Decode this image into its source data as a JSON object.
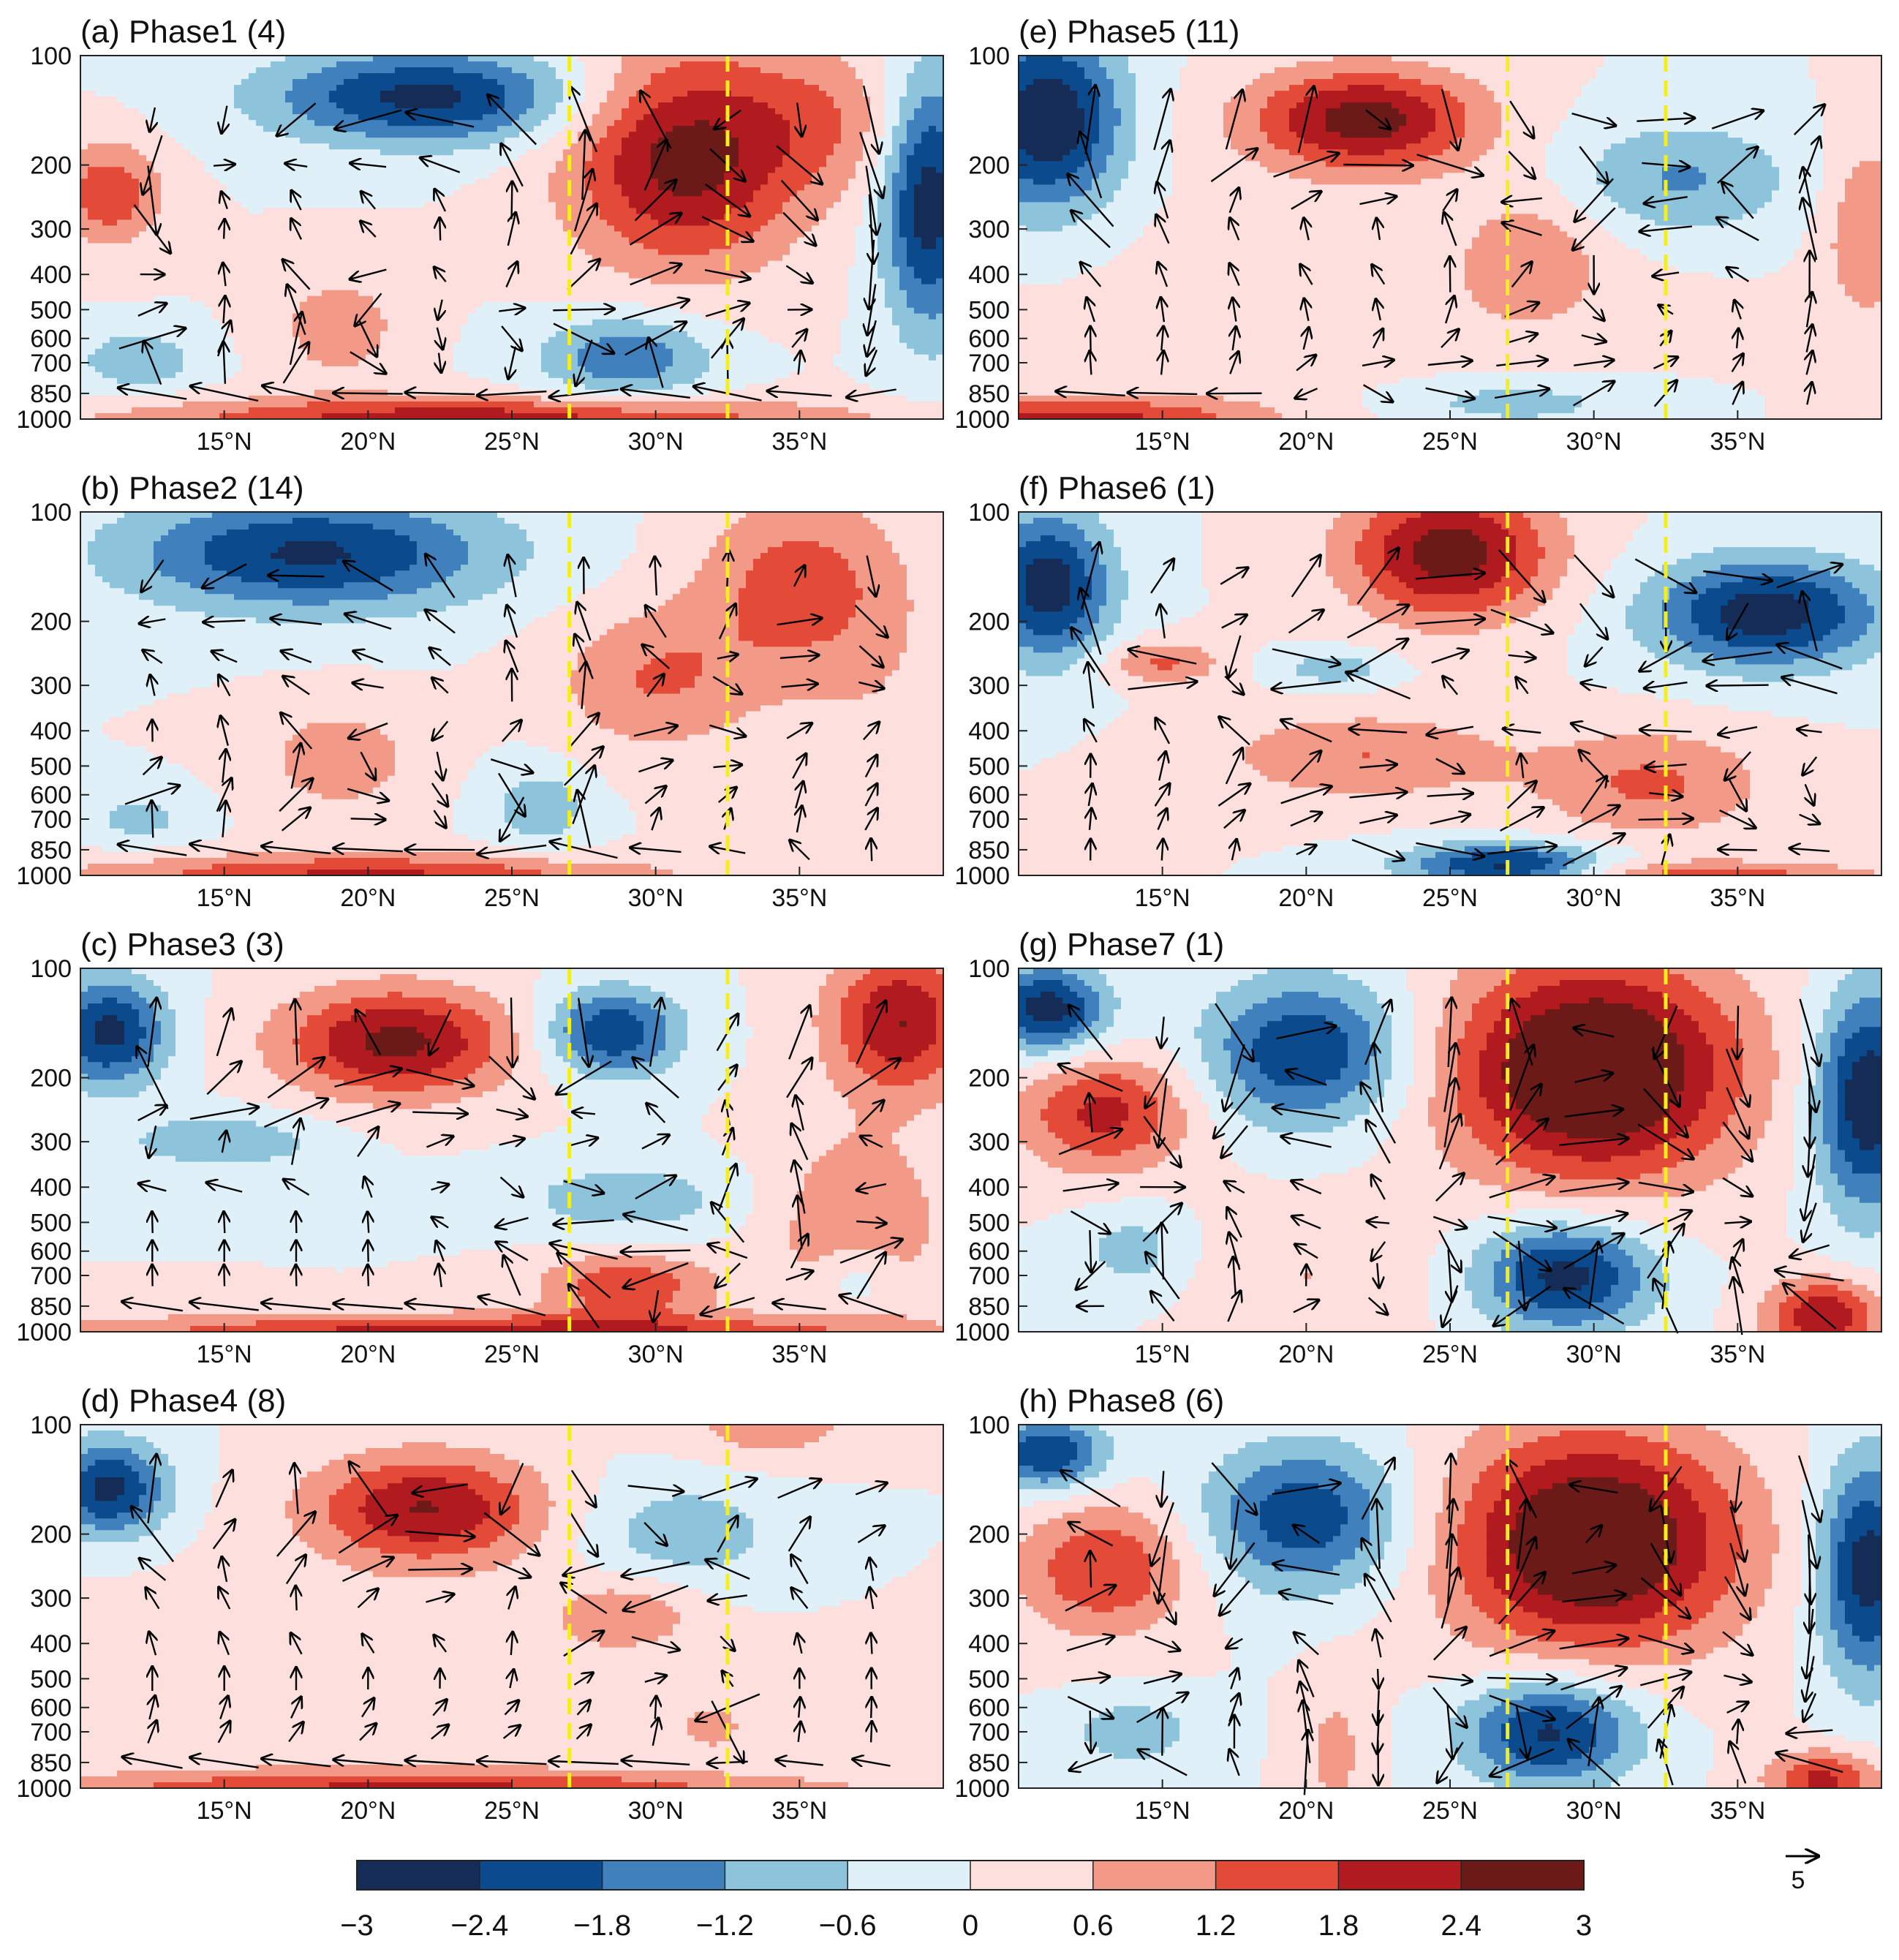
{
  "chart_data": {
    "type": "heatmap",
    "description_units": "pressure-latitude cross sections with vertical circulation vectors",
    "y_levels_hPa": [
      100,
      200,
      300,
      400,
      500,
      600,
      700,
      850,
      1000
    ],
    "y_tick_labels": [
      "100",
      "200",
      "300",
      "400",
      "500",
      "600",
      "700",
      "850",
      "1000"
    ],
    "x_range_degN": [
      10,
      40
    ],
    "x_ticks": [
      15,
      20,
      25,
      30,
      35
    ],
    "x_tick_labels": [
      "15°N",
      "20°N",
      "25°N",
      "30°N",
      "35°N"
    ],
    "reference_lines_degN": [
      27,
      32.5
    ],
    "reference_line_color": "#f5ee1a",
    "vector_key": {
      "label": "5"
    },
    "colorbar": {
      "boundaries": [
        -3,
        -2.4,
        -1.8,
        -1.2,
        -0.6,
        0,
        0.6,
        1.2,
        1.8,
        2.4,
        3
      ],
      "tick_labels": [
        "−3",
        "−2.4",
        "−1.8",
        "−1.2",
        "−0.6",
        "0",
        "0.6",
        "1.2",
        "1.8",
        "2.4",
        "3"
      ],
      "colors": [
        "#152d56",
        "#0b4a8c",
        "#3f80bd",
        "#8dc4dc",
        "#dff0f8",
        "#fde0dd",
        "#f29a87",
        "#e44a38",
        "#b11a1e",
        "#6b1a18"
      ]
    },
    "panels": [
      {
        "id": "a",
        "title": "(a) Phase1  (4)",
        "blobs": [
          {
            "lat": 22,
            "p": 130,
            "a": -2.6,
            "sx": 5.5,
            "sy": 0.13
          },
          {
            "lat": 11,
            "p": 240,
            "a": 1.7,
            "sx": 1.8,
            "sy": 0.14
          },
          {
            "lat": 31,
            "p": 190,
            "a": 2.7,
            "sx": 4,
            "sy": 0.3
          },
          {
            "lat": 36,
            "p": 150,
            "a": 0.9,
            "sx": 3,
            "sy": 0.2
          },
          {
            "lat": 39.5,
            "p": 250,
            "a": -2.8,
            "sx": 1.6,
            "sy": 0.35
          },
          {
            "lat": 29,
            "p": 680,
            "a": -1.7,
            "sx": 3,
            "sy": 0.12
          },
          {
            "lat": 12,
            "p": 690,
            "a": -1.2,
            "sx": 2,
            "sy": 0.08
          },
          {
            "lat": 19,
            "p": 560,
            "a": 1,
            "sx": 2.2,
            "sy": 0.15
          },
          {
            "lat": 24,
            "p": 1000,
            "a": 2.2,
            "sx": 12,
            "sy": 0.06
          }
        ]
      },
      {
        "id": "b",
        "title": "(b) Phase2  (14)",
        "blobs": [
          {
            "lat": 18,
            "p": 130,
            "a": -2.5,
            "sx": 6.5,
            "sy": 0.16
          },
          {
            "lat": 35,
            "p": 160,
            "a": 1.5,
            "sx": 3.5,
            "sy": 0.25
          },
          {
            "lat": 30,
            "p": 290,
            "a": 1.2,
            "sx": 3.5,
            "sy": 0.2
          },
          {
            "lat": 19,
            "p": 480,
            "a": 1,
            "sx": 2.8,
            "sy": 0.15
          },
          {
            "lat": 26,
            "p": 650,
            "a": -1,
            "sx": 1.8,
            "sy": 0.12
          },
          {
            "lat": 12,
            "p": 700,
            "a": -0.8,
            "sx": 2,
            "sy": 0.08
          },
          {
            "lat": 20,
            "p": 1000,
            "a": 1.9,
            "sx": 10,
            "sy": 0.06
          },
          {
            "lat": 38,
            "p": 400,
            "a": 0.4,
            "sx": 3,
            "sy": 0.4
          }
        ]
      },
      {
        "id": "c",
        "title": "(c) Phase3  (3)",
        "blobs": [
          {
            "lat": 21,
            "p": 160,
            "a": 2.6,
            "sx": 4,
            "sy": 0.15
          },
          {
            "lat": 38.5,
            "p": 140,
            "a": 2.4,
            "sx": 2.5,
            "sy": 0.2
          },
          {
            "lat": 28.5,
            "p": 150,
            "a": -2.4,
            "sx": 2.3,
            "sy": 0.12
          },
          {
            "lat": 11,
            "p": 150,
            "a": -2.6,
            "sx": 2,
            "sy": 0.15
          },
          {
            "lat": 15,
            "p": 300,
            "a": -1.1,
            "sx": 3.5,
            "sy": 0.08
          },
          {
            "lat": 29,
            "p": 430,
            "a": -1,
            "sx": 4,
            "sy": 0.1
          },
          {
            "lat": 29,
            "p": 750,
            "a": 1.7,
            "sx": 3,
            "sy": 0.09
          },
          {
            "lat": 37,
            "p": 500,
            "a": 1.2,
            "sx": 3,
            "sy": 0.25
          },
          {
            "lat": 24,
            "p": 1000,
            "a": 2.1,
            "sx": 14,
            "sy": 0.05
          },
          {
            "lat": 37,
            "p": 700,
            "a": -0.9,
            "sx": 1.3,
            "sy": 0.1
          }
        ]
      },
      {
        "id": "d",
        "title": "(d) Phase4  (8)",
        "blobs": [
          {
            "lat": 22,
            "p": 170,
            "a": 2.4,
            "sx": 4,
            "sy": 0.15
          },
          {
            "lat": 11,
            "p": 150,
            "a": -2.6,
            "sx": 2,
            "sy": 0.13
          },
          {
            "lat": 31,
            "p": 200,
            "a": -1,
            "sx": 3.5,
            "sy": 0.15
          },
          {
            "lat": 29,
            "p": 330,
            "a": 1,
            "sx": 2.5,
            "sy": 0.1
          },
          {
            "lat": 34,
            "p": 100,
            "a": 1,
            "sx": 3,
            "sy": 0.1
          },
          {
            "lat": 22,
            "p": 1000,
            "a": 1.8,
            "sx": 14,
            "sy": 0.05
          },
          {
            "lat": 20,
            "p": 500,
            "a": 0.4,
            "sx": 10,
            "sy": 0.3
          },
          {
            "lat": 32,
            "p": 680,
            "a": 1,
            "sx": 1,
            "sy": 0.06
          }
        ]
      },
      {
        "id": "e",
        "title": "(e) Phase5  (11)",
        "blobs": [
          {
            "lat": 22,
            "p": 150,
            "a": 2.7,
            "sx": 4,
            "sy": 0.14
          },
          {
            "lat": 11,
            "p": 150,
            "a": -3,
            "sx": 2.6,
            "sy": 0.25
          },
          {
            "lat": 33,
            "p": 220,
            "a": -1.3,
            "sx": 4,
            "sy": 0.16
          },
          {
            "lat": 28,
            "p": 350,
            "a": 0.9,
            "sx": 2.5,
            "sy": 0.18
          },
          {
            "lat": 39.5,
            "p": 300,
            "a": 1.2,
            "sx": 1.5,
            "sy": 0.25
          },
          {
            "lat": 27,
            "p": 900,
            "a": -1,
            "sx": 5,
            "sy": 0.08
          },
          {
            "lat": 12,
            "p": 1000,
            "a": 2,
            "sx": 6,
            "sy": 0.06
          },
          {
            "lat": 22,
            "p": 550,
            "a": 0.4,
            "sx": 10,
            "sy": 0.35
          }
        ]
      },
      {
        "id": "f",
        "title": "(f) Phase6  (1)",
        "blobs": [
          {
            "lat": 25,
            "p": 130,
            "a": 2.8,
            "sx": 3.5,
            "sy": 0.18
          },
          {
            "lat": 11,
            "p": 160,
            "a": -2.8,
            "sx": 2.2,
            "sy": 0.2
          },
          {
            "lat": 36,
            "p": 190,
            "a": -2.8,
            "sx": 4,
            "sy": 0.15
          },
          {
            "lat": 22,
            "p": 470,
            "a": 1.2,
            "sx": 5,
            "sy": 0.12
          },
          {
            "lat": 32,
            "p": 560,
            "a": 1.3,
            "sx": 4,
            "sy": 0.15
          },
          {
            "lat": 27,
            "p": 940,
            "a": -2.7,
            "sx": 3.5,
            "sy": 0.06
          },
          {
            "lat": 15,
            "p": 260,
            "a": 1.3,
            "sx": 2,
            "sy": 0.06
          },
          {
            "lat": 21,
            "p": 270,
            "a": -1,
            "sx": 2,
            "sy": 0.05
          },
          {
            "lat": 34,
            "p": 1000,
            "a": 1.5,
            "sx": 6,
            "sy": 0.04
          }
        ]
      },
      {
        "id": "g",
        "title": "(g) Phase7  (1)",
        "blobs": [
          {
            "lat": 30,
            "p": 190,
            "a": 3.6,
            "sx": 5,
            "sy": 0.3
          },
          {
            "lat": 20,
            "p": 170,
            "a": -2.4,
            "sx": 3.5,
            "sy": 0.2
          },
          {
            "lat": 11,
            "p": 130,
            "a": -2.8,
            "sx": 2,
            "sy": 0.12
          },
          {
            "lat": 13,
            "p": 250,
            "a": 2,
            "sx": 3,
            "sy": 0.16
          },
          {
            "lat": 39.5,
            "p": 230,
            "a": -3,
            "sx": 1.8,
            "sy": 0.3
          },
          {
            "lat": 29,
            "p": 700,
            "a": -2.7,
            "sx": 3,
            "sy": 0.15
          },
          {
            "lat": 14,
            "p": 600,
            "a": -0.9,
            "sx": 2,
            "sy": 0.12
          },
          {
            "lat": 38,
            "p": 900,
            "a": 2.4,
            "sx": 2,
            "sy": 0.1
          },
          {
            "lat": 20,
            "p": 700,
            "a": 0.6,
            "sx": 4,
            "sy": 0.2
          }
        ]
      },
      {
        "id": "h",
        "title": "(h) Phase8  (6)",
        "blobs": [
          {
            "lat": 30,
            "p": 210,
            "a": 3.4,
            "sx": 5,
            "sy": 0.3
          },
          {
            "lat": 20,
            "p": 180,
            "a": -2.3,
            "sx": 3.5,
            "sy": 0.2
          },
          {
            "lat": 11,
            "p": 120,
            "a": -2.4,
            "sx": 2,
            "sy": 0.1
          },
          {
            "lat": 13,
            "p": 250,
            "a": 1.8,
            "sx": 3,
            "sy": 0.18
          },
          {
            "lat": 39.5,
            "p": 250,
            "a": -2.8,
            "sx": 1.7,
            "sy": 0.3
          },
          {
            "lat": 28.5,
            "p": 700,
            "a": -2.6,
            "sx": 3,
            "sy": 0.15
          },
          {
            "lat": 14,
            "p": 700,
            "a": -1,
            "sx": 2.3,
            "sy": 0.1
          },
          {
            "lat": 38,
            "p": 950,
            "a": 2,
            "sx": 2,
            "sy": 0.08
          },
          {
            "lat": 21,
            "p": 800,
            "a": 0.8,
            "sx": 1.2,
            "sy": 0.2
          }
        ]
      }
    ]
  }
}
